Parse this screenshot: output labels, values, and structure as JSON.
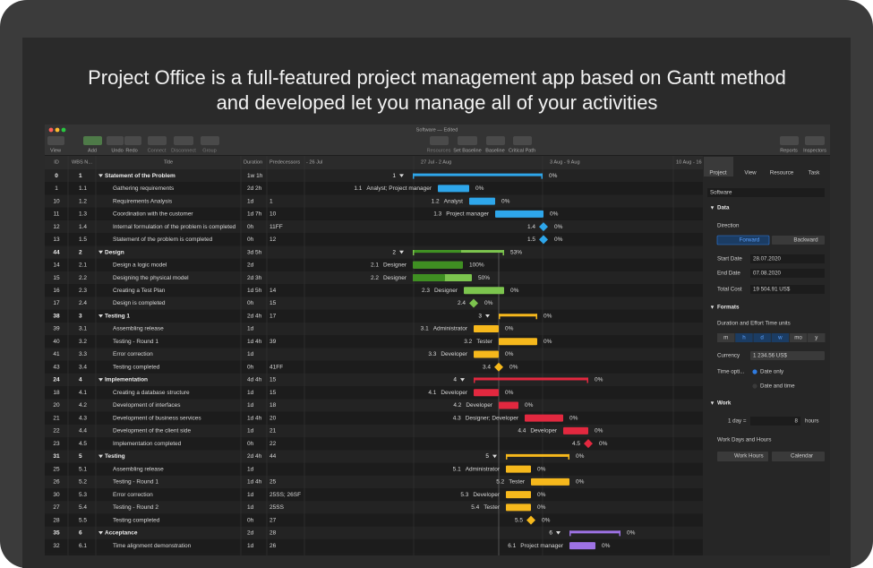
{
  "headline": [
    "Project Office is a full-featured project management app based on Gantt method",
    "and developed  let you manage all of your activities"
  ],
  "window": {
    "title": "Software — Edited"
  },
  "toolbar": {
    "left": [
      "View",
      "Add",
      "Undo",
      "Redo",
      "Connect",
      "Disconnect",
      "Group"
    ],
    "center": [
      "Resources",
      "Set Baseline",
      "Baseline",
      "Critical Path"
    ],
    "right": [
      "Reports",
      "Inspectors"
    ]
  },
  "table": {
    "columns": [
      "ID",
      "WBS N...",
      "Title",
      "Duration",
      "Predecessors"
    ],
    "rows": [
      {
        "id": 0,
        "wbs": "1",
        "title": "Statement of the Problem",
        "duration": "1w 1h",
        "progress": "0%"
      },
      {
        "id": 1,
        "wbs": "1.1",
        "title": "Gathering requirements",
        "duration": "2d 2h",
        "resources": "Analyst; Project manager",
        "progress": "0%"
      },
      {
        "id": 10,
        "wbs": "1.2",
        "title": "Requirements Analysis",
        "duration": "1d",
        "predecessors": "1",
        "resources": "Analyst",
        "progress": "0%"
      },
      {
        "id": 11,
        "wbs": "1.3",
        "title": "Coordination with the customer",
        "duration": "1d 7h",
        "predecessors": "10",
        "resources": "Project manager",
        "progress": "0%"
      },
      {
        "id": 12,
        "wbs": "1.4",
        "title": "Internal formulation of the problem is completed",
        "duration": "0h",
        "predecessors": "11FF",
        "progress": "0%"
      },
      {
        "id": 13,
        "wbs": "1.5",
        "title": "Statement of the problem is completed",
        "duration": "0h",
        "predecessors": "12",
        "progress": "0%"
      },
      {
        "id": 44,
        "wbs": "2",
        "title": "Design",
        "duration": "3d 5h",
        "progress": "53%"
      },
      {
        "id": 14,
        "wbs": "2.1",
        "title": "Design a logic model",
        "duration": "2d",
        "resources": "Designer",
        "progress": "100%"
      },
      {
        "id": 15,
        "wbs": "2.2",
        "title": "Designing the physical model",
        "duration": "2d 3h",
        "resources": "Designer",
        "progress": "50%"
      },
      {
        "id": 16,
        "wbs": "2.3",
        "title": "Creating a Test Plan",
        "duration": "1d 5h",
        "predecessors": "14",
        "resources": "Designer",
        "progress": "0%"
      },
      {
        "id": 17,
        "wbs": "2.4",
        "title": "Design is completed",
        "duration": "0h",
        "predecessors": "15",
        "progress": "0%"
      },
      {
        "id": 38,
        "wbs": "3",
        "title": "Testing 1",
        "duration": "2d 4h",
        "predecessors": "17",
        "progress": "0%"
      },
      {
        "id": 39,
        "wbs": "3.1",
        "title": "Assembling release",
        "duration": "1d",
        "resources": "Administrator",
        "progress": "0%"
      },
      {
        "id": 40,
        "wbs": "3.2",
        "title": "Testing - Round 1",
        "duration": "1d 4h",
        "predecessors": "39",
        "resources": "Tester",
        "progress": "0%"
      },
      {
        "id": 41,
        "wbs": "3.3",
        "title": "Error correction",
        "duration": "1d",
        "resources": "Developer",
        "progress": "0%"
      },
      {
        "id": 43,
        "wbs": "3.4",
        "title": "Testing completed",
        "duration": "0h",
        "predecessors": "41FF",
        "progress": "0%"
      },
      {
        "id": 24,
        "wbs": "4",
        "title": "Implementation",
        "duration": "4d 4h",
        "predecessors": "15",
        "progress": "0%"
      },
      {
        "id": 18,
        "wbs": "4.1",
        "title": "Creating a database structure",
        "duration": "1d",
        "predecessors": "15",
        "resources": "Developer",
        "progress": "0%"
      },
      {
        "id": 20,
        "wbs": "4.2",
        "title": "Development of interfaces",
        "duration": "1d",
        "predecessors": "18",
        "resources": "Developer",
        "progress": "0%"
      },
      {
        "id": 21,
        "wbs": "4.3",
        "title": "Development of business services",
        "duration": "1d 4h",
        "predecessors": "20",
        "resources": "Designer; Developer",
        "progress": "0%"
      },
      {
        "id": 22,
        "wbs": "4.4",
        "title": "Development of the client side",
        "duration": "1d",
        "predecessors": "21",
        "resources": "Developer",
        "progress": "0%"
      },
      {
        "id": 23,
        "wbs": "4.5",
        "title": "Implementation completed",
        "duration": "0h",
        "predecessors": "22",
        "progress": "0%"
      },
      {
        "id": 31,
        "wbs": "5",
        "title": "Testing",
        "duration": "2d 4h",
        "predecessors": "44",
        "progress": "0%"
      },
      {
        "id": 25,
        "wbs": "5.1",
        "title": "Assembling release",
        "duration": "1d",
        "resources": "Administrator",
        "progress": "0%"
      },
      {
        "id": 26,
        "wbs": "5.2",
        "title": "Testing - Round 1",
        "duration": "1d 4h",
        "predecessors": "25",
        "resources": "Tester",
        "progress": "0%"
      },
      {
        "id": 30,
        "wbs": "5.3",
        "title": "Error correction",
        "duration": "1d",
        "predecessors": "25SS; 26SF",
        "resources": "Developer",
        "progress": "0%"
      },
      {
        "id": 27,
        "wbs": "5.4",
        "title": "Testing - Round 2",
        "duration": "1d",
        "predecessors": "25SS",
        "resources": "Tester",
        "progress": "0%"
      },
      {
        "id": 28,
        "wbs": "5.5",
        "title": "Testing completed",
        "duration": "0h",
        "predecessors": "27",
        "progress": "0%"
      },
      {
        "id": 35,
        "wbs": "6",
        "title": "Acceptance",
        "duration": "2d",
        "predecessors": "28",
        "progress": "0%"
      },
      {
        "id": 32,
        "wbs": "6.1",
        "title": "Time alignment demonstration",
        "duration": "1d",
        "predecessors": "26",
        "resources": "Project manager",
        "progress": "0%"
      }
    ]
  },
  "gantt": {
    "periods": [
      "- 26 Jul",
      "27 Jul - 2 Aug",
      "3 Aug - 9 Aug",
      "10 Aug - 16"
    ]
  },
  "inspector": {
    "tabs": [
      "Project",
      "View",
      "Resource",
      "Task"
    ],
    "name": "Software",
    "data_section": "Data",
    "direction_label": "Direction",
    "forward": "Forward",
    "backward": "Backward",
    "start_date_label": "Start Date",
    "start_date": "28.07.2020",
    "end_date_label": "End Date",
    "end_date": "07.08.2020",
    "total_cost_label": "Total Cost",
    "total_cost": "19 504.91 US$",
    "formats_section": "Formats",
    "time_units_label": "Duration and Effort Time units",
    "time_units": [
      "m",
      "h",
      "d",
      "w",
      "mo",
      "y"
    ],
    "currency_label": "Currency",
    "currency": "1 234.56 US$",
    "time_options_label": "Time opti...",
    "date_only": "Date only",
    "date_and_time": "Date and time",
    "work_section": "Work",
    "day_label": "1 day =",
    "day_hours": 8,
    "hours_label": "hours",
    "work_days_label": "Work Days and Hours",
    "work_hours": "Work Hours",
    "calendar": "Calendar"
  }
}
